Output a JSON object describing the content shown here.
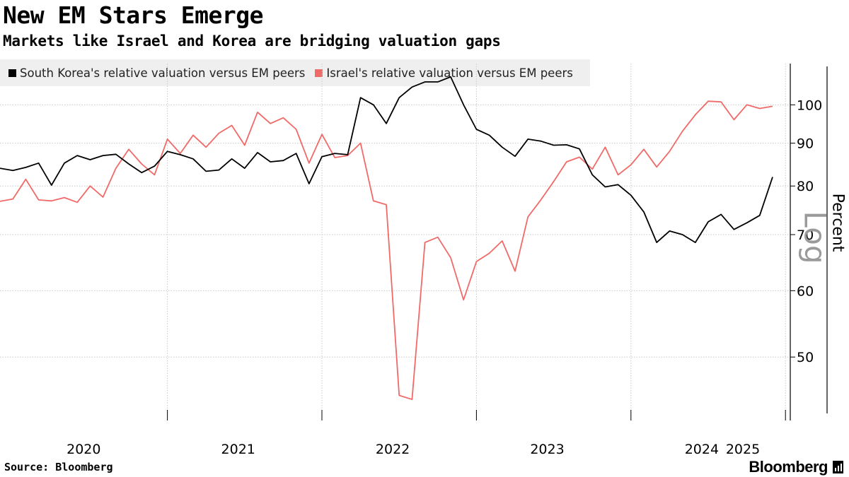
{
  "chart_data": {
    "type": "line",
    "title": "New EM Stars Emerge",
    "subtitle": "Markets like Israel and Korea are bridging valuation gaps",
    "ylabel": "Percent",
    "yscale": "Log",
    "ylim": [
      42,
      112
    ],
    "yticks": [
      50,
      60,
      70,
      80,
      90,
      100
    ],
    "xlabel": "",
    "xticks": [
      "2020",
      "2021",
      "2022",
      "2023",
      "2024",
      "2025"
    ],
    "x_start": "2019-12",
    "grid": true,
    "legend_position": "top-left",
    "series": [
      {
        "name": "South Korea's relative valuation versus EM peers",
        "color": "#000000",
        "values": [
          84,
          83.5,
          84.2,
          85.2,
          80.2,
          85.2,
          87,
          86,
          87,
          87.3,
          85,
          83,
          84.5,
          88,
          87.2,
          86.2,
          83.3,
          83.6,
          86.2,
          84,
          87.7,
          85.5,
          85.8,
          87.5,
          80.5,
          86.7,
          87.5,
          87.2,
          102,
          100,
          95,
          102,
          105,
          106.5,
          106.5,
          108,
          100,
          93.5,
          92,
          89,
          86.8,
          91,
          90.5,
          89.5,
          89.6,
          88.6,
          82.5,
          79.8,
          80.3,
          78,
          74.5,
          68.5,
          70.7,
          70,
          68.5,
          72.5,
          74,
          71,
          72.3,
          73.8,
          82
        ]
      },
      {
        "name": "Israel's relative valuation versus EM peers",
        "color": "#f06a68",
        "values": [
          76.7,
          77.2,
          81.5,
          77,
          76.8,
          77.5,
          76.5,
          80,
          77.6,
          84,
          88.5,
          85,
          82.5,
          91,
          87.5,
          92,
          89,
          92.5,
          94.5,
          89.5,
          98,
          95,
          96.5,
          93.5,
          85.2,
          92.2,
          86.5,
          87,
          90,
          76.8,
          76,
          45,
          44.5,
          68.5,
          69.5,
          65.7,
          58.5,
          65,
          66.5,
          68.8,
          63.3,
          73.5,
          77,
          81,
          85.5,
          86.6,
          83.8,
          89,
          82.5,
          84.8,
          88.5,
          84.3,
          88,
          93,
          97.3,
          101,
          100.8,
          96,
          100,
          99,
          99.6
        ]
      }
    ]
  },
  "source": "Source: Bloomberg",
  "brand": "Bloomberg"
}
